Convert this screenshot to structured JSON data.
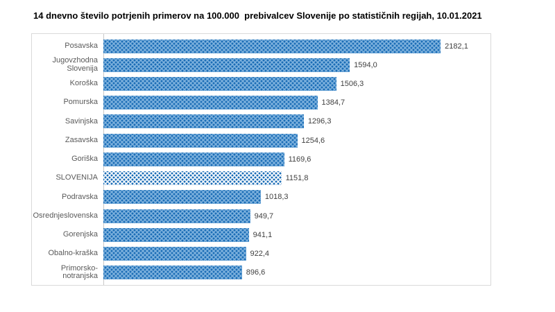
{
  "title": "14 dnevno število potrjenih primerov na 100.000  prebivalcev Slovenije po statističnih regijah, 10.01.2021",
  "colors": {
    "bar_dot": "#1b6db6",
    "bar_background": "#7eb2de",
    "highlight_bar_background": "#ffffff",
    "category_label_text": "#595959",
    "value_label_text": "#404040",
    "chart_border": "#d9d9d9",
    "axis_line": "#c9c9c9"
  },
  "chart_data": {
    "type": "bar",
    "orientation": "horizontal",
    "title": "14 dnevno število potrjenih primerov na 100.000  prebivalcev Slovenije po statističnih regijah, 10.01.2021",
    "categories": [
      "Posavska",
      "Jugovzhodna Slovenija",
      "Koroška",
      "Pomurska",
      "Savinjska",
      "Zasavska",
      "Goriška",
      "SLOVENIJA",
      "Podravska",
      "Osrednjeslovenska",
      "Gorenjska",
      "Obalno-kraška",
      "Primorsko-notranjska"
    ],
    "values": [
      2182.1,
      1594.0,
      1506.3,
      1384.7,
      1296.3,
      1254.6,
      1169.6,
      1151.8,
      1018.3,
      949.7,
      941.1,
      922.4,
      896.6
    ],
    "value_labels": [
      "2182,1",
      "1594,0",
      "1506,3",
      "1384,7",
      "1296,3",
      "1254,6",
      "1169,6",
      "1151,8",
      "1018,3",
      "949,7",
      "941,1",
      "922,4",
      "896,6"
    ],
    "highlight_category": "SLOVENIJA",
    "xlabel": "",
    "ylabel": "",
    "xlim": [
      0,
      2500
    ],
    "grid": false,
    "legend": false,
    "data_labels": true,
    "bar_pattern": "dotted"
  }
}
